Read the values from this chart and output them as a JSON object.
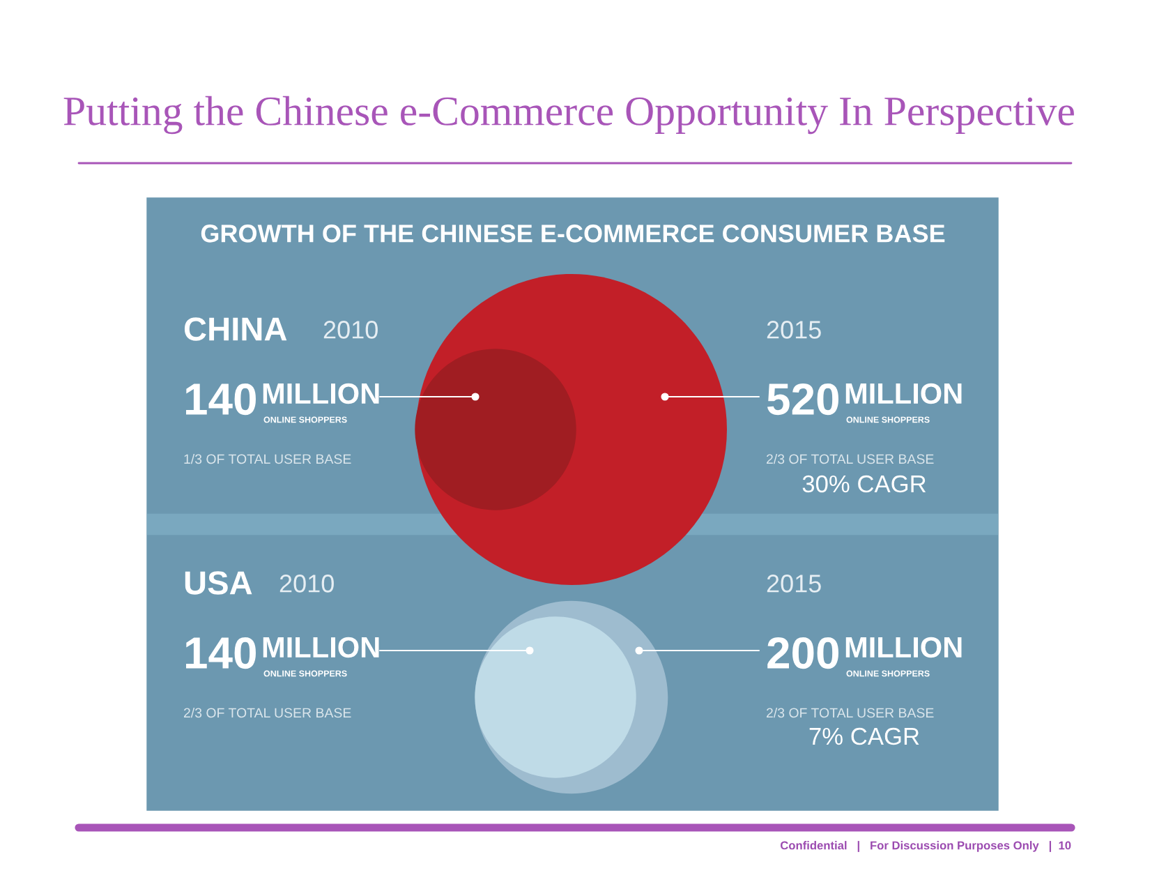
{
  "chart_data": {
    "type": "other",
    "title": "Putting the Chinese e-Commerce Opportunity In Perspective",
    "subtitle": "GROWTH OF THE CHINESE E-COMMERCE CONSUMER BASE",
    "categories": [
      "CHINA",
      "USA"
    ],
    "series": [
      {
        "name": "2010",
        "colors": [
          "#a01d22",
          "#bfdbe7"
        ],
        "values": [
          140,
          140
        ]
      },
      {
        "name": "2015",
        "colors": [
          "#c21f28",
          "#9ebccf"
        ],
        "values": [
          520,
          200
        ]
      }
    ],
    "data_labels": true,
    "annotations": [
      "MILLION",
      "ONLINE SHOPPERS",
      "1/3 OF TOTAL USER BASE",
      "MILLION",
      "ONLINE SHOPPERS",
      "2/3 OF TOTAL USER BASE",
      "MILLION",
      "ONLINE SHOPPERS",
      "2/3 OF TOTAL USER BASE",
      "MILLION",
      "ONLINE SHOPPERS",
      "2/3 OF TOTAL USER BASE",
      "30% CAGR",
      "7% CAGR",
      "Confidential   |   For Discussion Purposes Only   |  10"
    ]
  }
}
